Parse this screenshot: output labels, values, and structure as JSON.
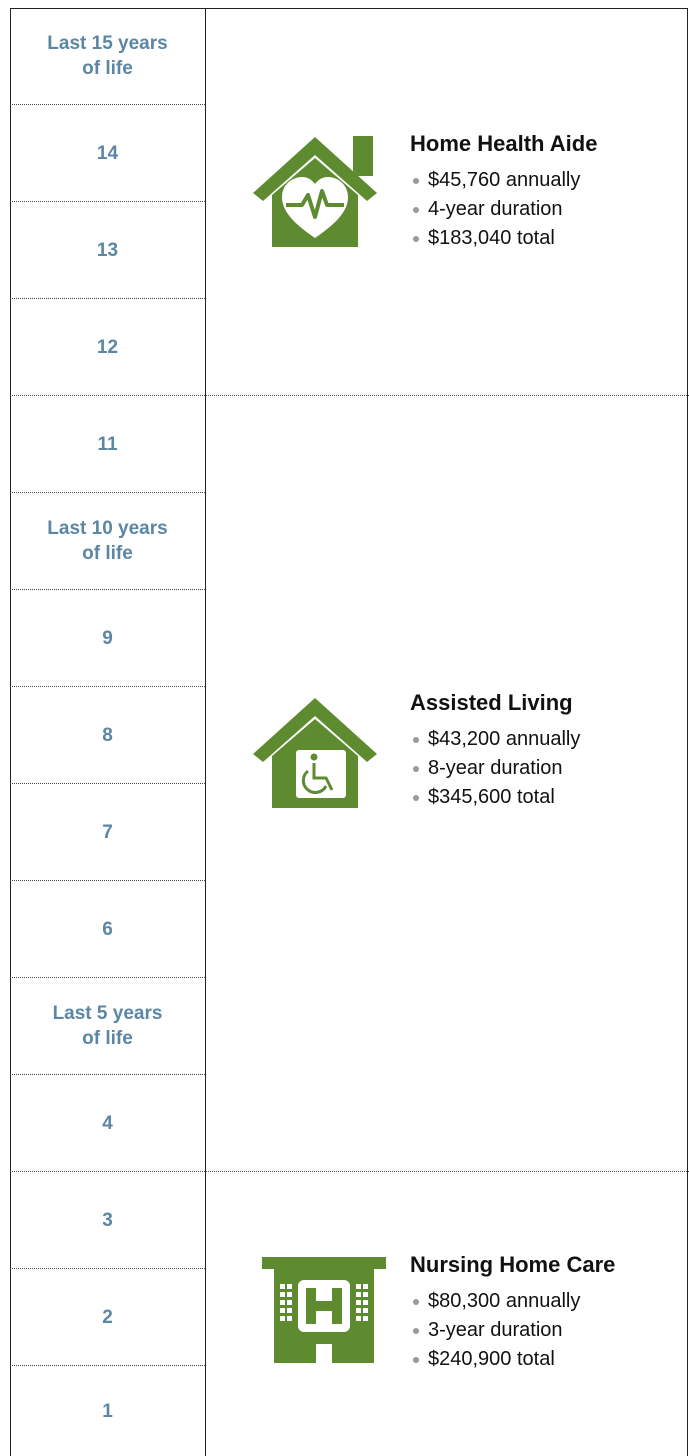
{
  "rows": [
    {
      "lines": [
        "Last 15 years",
        "of life"
      ]
    },
    {
      "lines": [
        "14"
      ]
    },
    {
      "lines": [
        "13"
      ]
    },
    {
      "lines": [
        "12"
      ]
    },
    {
      "lines": [
        "11"
      ]
    },
    {
      "lines": [
        "Last 10 years",
        "of life"
      ]
    },
    {
      "lines": [
        "9"
      ]
    },
    {
      "lines": [
        "8"
      ]
    },
    {
      "lines": [
        "7"
      ]
    },
    {
      "lines": [
        "6"
      ]
    },
    {
      "lines": [
        "Last 5 years",
        "of life"
      ]
    },
    {
      "lines": [
        "4"
      ]
    },
    {
      "lines": [
        "3"
      ]
    },
    {
      "lines": [
        "2"
      ]
    },
    {
      "lines": [
        "1"
      ]
    }
  ],
  "sections": [
    {
      "title": "Home Health Aide",
      "bullets": [
        "$45,760 annually",
        "4-year duration",
        "$183,040 total"
      ]
    },
    {
      "title": "Assisted Living",
      "bullets": [
        "$43,200 annually",
        "8-year duration",
        "$345,600 total"
      ]
    },
    {
      "title": "Nursing Home Care",
      "bullets": [
        "$80,300 annually",
        "3-year duration",
        "$240,900 total"
      ]
    }
  ]
}
